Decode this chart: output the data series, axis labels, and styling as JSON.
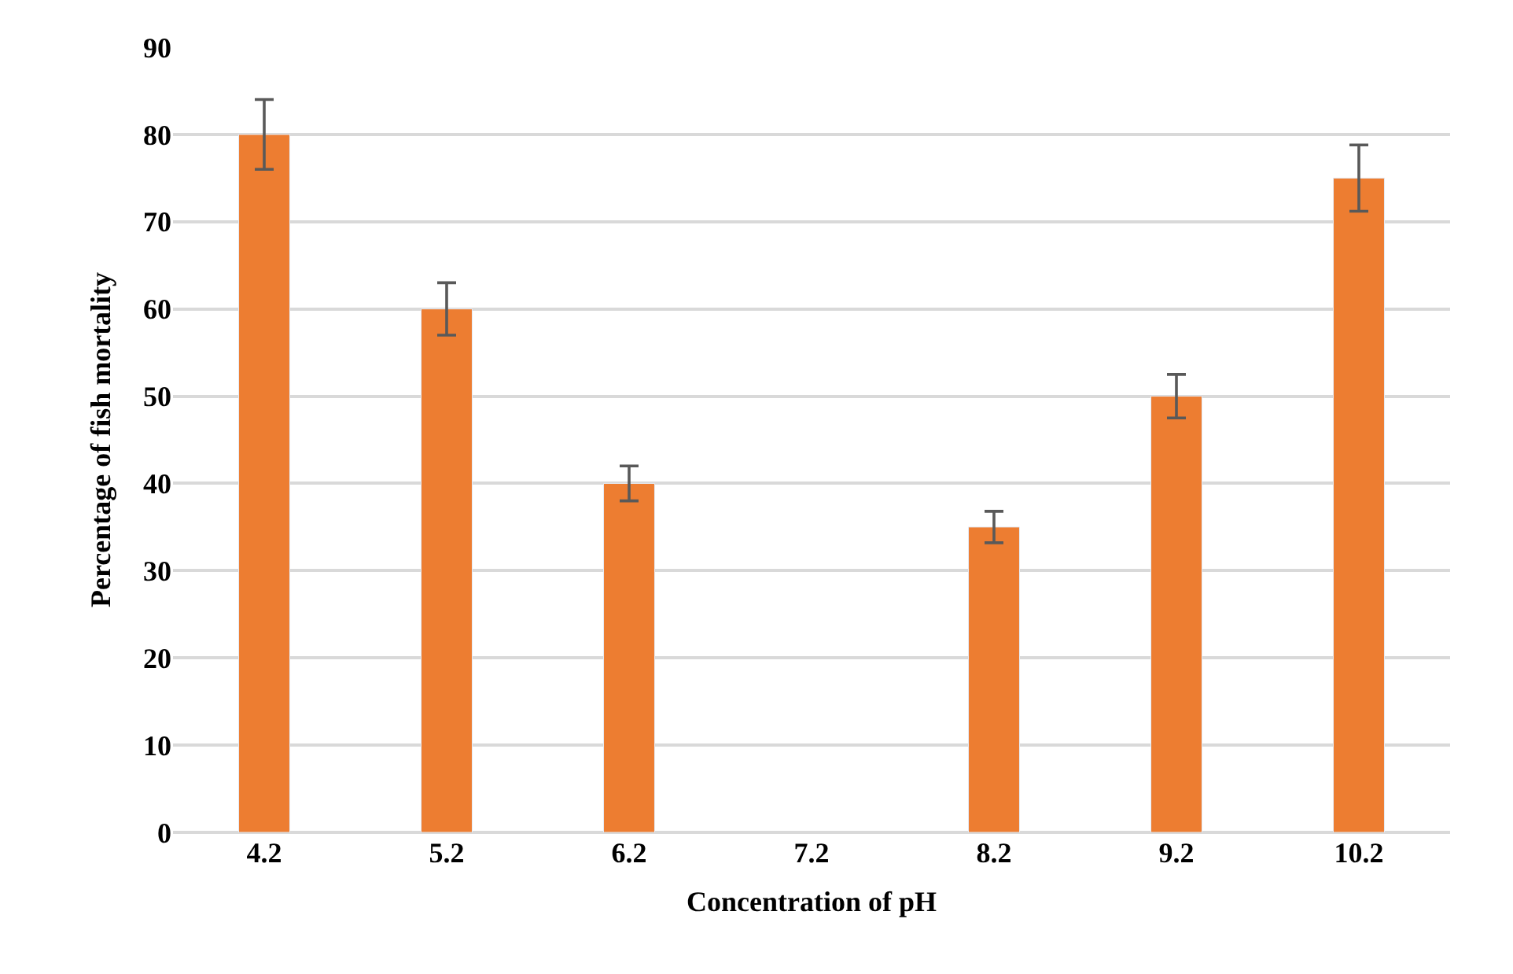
{
  "chart_data": {
    "type": "bar",
    "xlabel": "Concentration of pH",
    "ylabel": "Percentage of fish mortality",
    "categories": [
      "4.2",
      "5.2",
      "6.2",
      "7.2",
      "8.2",
      "9.2",
      "10.2"
    ],
    "values": [
      80,
      60,
      40,
      null,
      35,
      50,
      75
    ],
    "errors": [
      4,
      3,
      2,
      null,
      1.8,
      2.5,
      3.8
    ],
    "color": "#ed7d31",
    "ylim": [
      0,
      90
    ],
    "yticks": [
      0,
      10,
      20,
      30,
      40,
      50,
      60,
      70,
      80,
      90
    ],
    "grid": "y"
  }
}
